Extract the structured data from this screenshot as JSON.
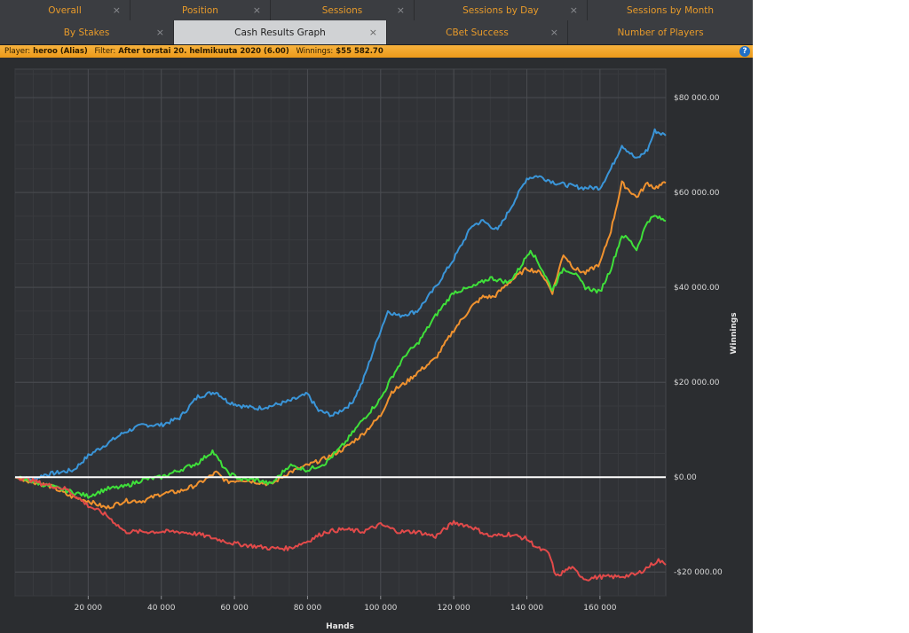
{
  "tabs_row1": [
    {
      "label": "Overall",
      "closable": true
    },
    {
      "label": "Position",
      "closable": true
    },
    {
      "label": "Sessions",
      "closable": true
    },
    {
      "label": "Sessions by Day",
      "closable": true
    },
    {
      "label": "Sessions by Month",
      "closable": false
    }
  ],
  "tabs_row2": [
    {
      "label": "By Stakes",
      "closable": true,
      "active": false
    },
    {
      "label": "Cash Results Graph",
      "closable": true,
      "active": true
    },
    {
      "label": "CBet Success",
      "closable": true,
      "active": false
    },
    {
      "label": "Number of Players",
      "closable": false,
      "active": false
    }
  ],
  "close_glyph": "×",
  "infobar": {
    "player_label": "Player:",
    "player_value": "heroo (Alias)",
    "filter_label": "Filter:",
    "filter_value": "After torstai 20. helmikuuta 2020 (6.00)",
    "winnings_label": "Winnings:",
    "winnings_value": "$55 582.70",
    "help_icon": "?"
  },
  "colors": {
    "accent": "#e79a2a",
    "background": "#2b2d30",
    "blue": "#3a95d8",
    "orange": "#f0922f",
    "green": "#3fe03a",
    "red": "#e24a4a",
    "zero_line": "#ffffff"
  },
  "chart_data": {
    "type": "line",
    "xlabel": "Hands",
    "ylabel": "Winnings",
    "xlim": [
      0,
      178000
    ],
    "ylim": [
      -25000,
      86000
    ],
    "x_ticks": [
      20000,
      40000,
      60000,
      80000,
      100000,
      120000,
      140000,
      160000
    ],
    "x_tick_labels": [
      "20 000",
      "40 000",
      "60 000",
      "80 000",
      "100 000",
      "120 000",
      "140 000",
      "160 000"
    ],
    "y_ticks": [
      80000,
      60000,
      40000,
      20000,
      0,
      -20000
    ],
    "y_tick_labels": [
      "$80 000.00",
      "$60 000.00",
      "$40 000.00",
      "$20 000.00",
      "$0.00",
      "-$20 000.00"
    ],
    "grid": true,
    "series": [
      {
        "color": "#3a95d8",
        "x": [
          0,
          5000,
          8000,
          12000,
          16000,
          20000,
          25000,
          30000,
          35000,
          40000,
          45000,
          50000,
          55000,
          58000,
          62000,
          66000,
          70000,
          75000,
          80000,
          83000,
          87000,
          92000,
          95000,
          100000,
          102000,
          105000,
          110000,
          115000,
          120000,
          125000,
          128000,
          132000,
          135000,
          140000,
          143000,
          148000,
          155000,
          160000,
          163000,
          166000,
          170000,
          173000,
          175000,
          178000
        ],
        "y": [
          0,
          -500,
          500,
          1000,
          1500,
          4500,
          7000,
          9500,
          11000,
          11000,
          12500,
          17000,
          18000,
          16000,
          15000,
          14500,
          15000,
          16000,
          17500,
          14000,
          13000,
          15500,
          20000,
          31000,
          35000,
          34000,
          35000,
          40000,
          46000,
          53000,
          54000,
          52000,
          56000,
          63000,
          63500,
          62000,
          61000,
          61000,
          65000,
          70000,
          67000,
          69000,
          73000,
          72000
        ]
      },
      {
        "color": "#f0922f",
        "x": [
          0,
          5000,
          10000,
          15000,
          20000,
          25000,
          30000,
          35000,
          40000,
          45000,
          50000,
          55000,
          58000,
          62000,
          66000,
          70000,
          75000,
          80000,
          85000,
          90000,
          95000,
          100000,
          103000,
          107000,
          110000,
          115000,
          120000,
          125000,
          128000,
          131000,
          135000,
          140000,
          144000,
          147000,
          150000,
          153000,
          156000,
          160000,
          163000,
          166000,
          170000,
          173000,
          175000,
          178000
        ],
        "y": [
          0,
          -1000,
          -2000,
          -4000,
          -5000,
          -6500,
          -5000,
          -5000,
          -3500,
          -3000,
          -1500,
          1000,
          -1000,
          -500,
          -1000,
          -1500,
          1000,
          2500,
          4000,
          6000,
          9000,
          13000,
          18000,
          20000,
          22000,
          25000,
          31000,
          36000,
          38000,
          38000,
          41000,
          44000,
          43000,
          39000,
          47000,
          44000,
          43000,
          45000,
          52000,
          62000,
          59000,
          62000,
          61000,
          62000
        ]
      },
      {
        "color": "#3fe03a",
        "x": [
          0,
          5000,
          10000,
          15000,
          20000,
          25000,
          30000,
          35000,
          40000,
          45000,
          50000,
          54000,
          58000,
          62000,
          66000,
          70000,
          75000,
          80000,
          85000,
          90000,
          95000,
          100000,
          103000,
          107000,
          110000,
          115000,
          120000,
          125000,
          130000,
          135000,
          138000,
          141000,
          144000,
          147000,
          150000,
          153000,
          156000,
          160000,
          163000,
          166000,
          168000,
          170000,
          173000,
          175000,
          178000
        ],
        "y": [
          0,
          -1000,
          -2000,
          -3000,
          -4000,
          -2500,
          -2000,
          -500,
          0,
          1500,
          3000,
          5500,
          1000,
          -500,
          -500,
          -1500,
          2500,
          1500,
          3000,
          7000,
          12000,
          16500,
          21000,
          26000,
          28000,
          34000,
          39000,
          40000,
          42000,
          41000,
          44000,
          48000,
          44000,
          39500,
          44000,
          43000,
          40000,
          39000,
          44000,
          51000,
          50000,
          48000,
          54000,
          55000,
          54000
        ]
      },
      {
        "color": "#e24a4a",
        "x": [
          0,
          4000,
          8000,
          14000,
          20000,
          25000,
          30000,
          35000,
          40000,
          45000,
          50000,
          55000,
          60000,
          65000,
          70000,
          75000,
          80000,
          85000,
          90000,
          95000,
          100000,
          105000,
          110000,
          115000,
          120000,
          125000,
          130000,
          135000,
          140000,
          143000,
          146000,
          148000,
          152000,
          156000,
          160000,
          165000,
          170000,
          174000,
          176000,
          178000
        ],
        "y": [
          0,
          -500,
          -1500,
          -2500,
          -6000,
          -8000,
          -11500,
          -11500,
          -11500,
          -11500,
          -12000,
          -13000,
          -14000,
          -14500,
          -15000,
          -15000,
          -13500,
          -11500,
          -11000,
          -11500,
          -10000,
          -11500,
          -11500,
          -12500,
          -9500,
          -10500,
          -12500,
          -12000,
          -13000,
          -15000,
          -16000,
          -21000,
          -19000,
          -21500,
          -21000,
          -21000,
          -20500,
          -18500,
          -17500,
          -18500
        ]
      }
    ],
    "zero_line": true
  }
}
